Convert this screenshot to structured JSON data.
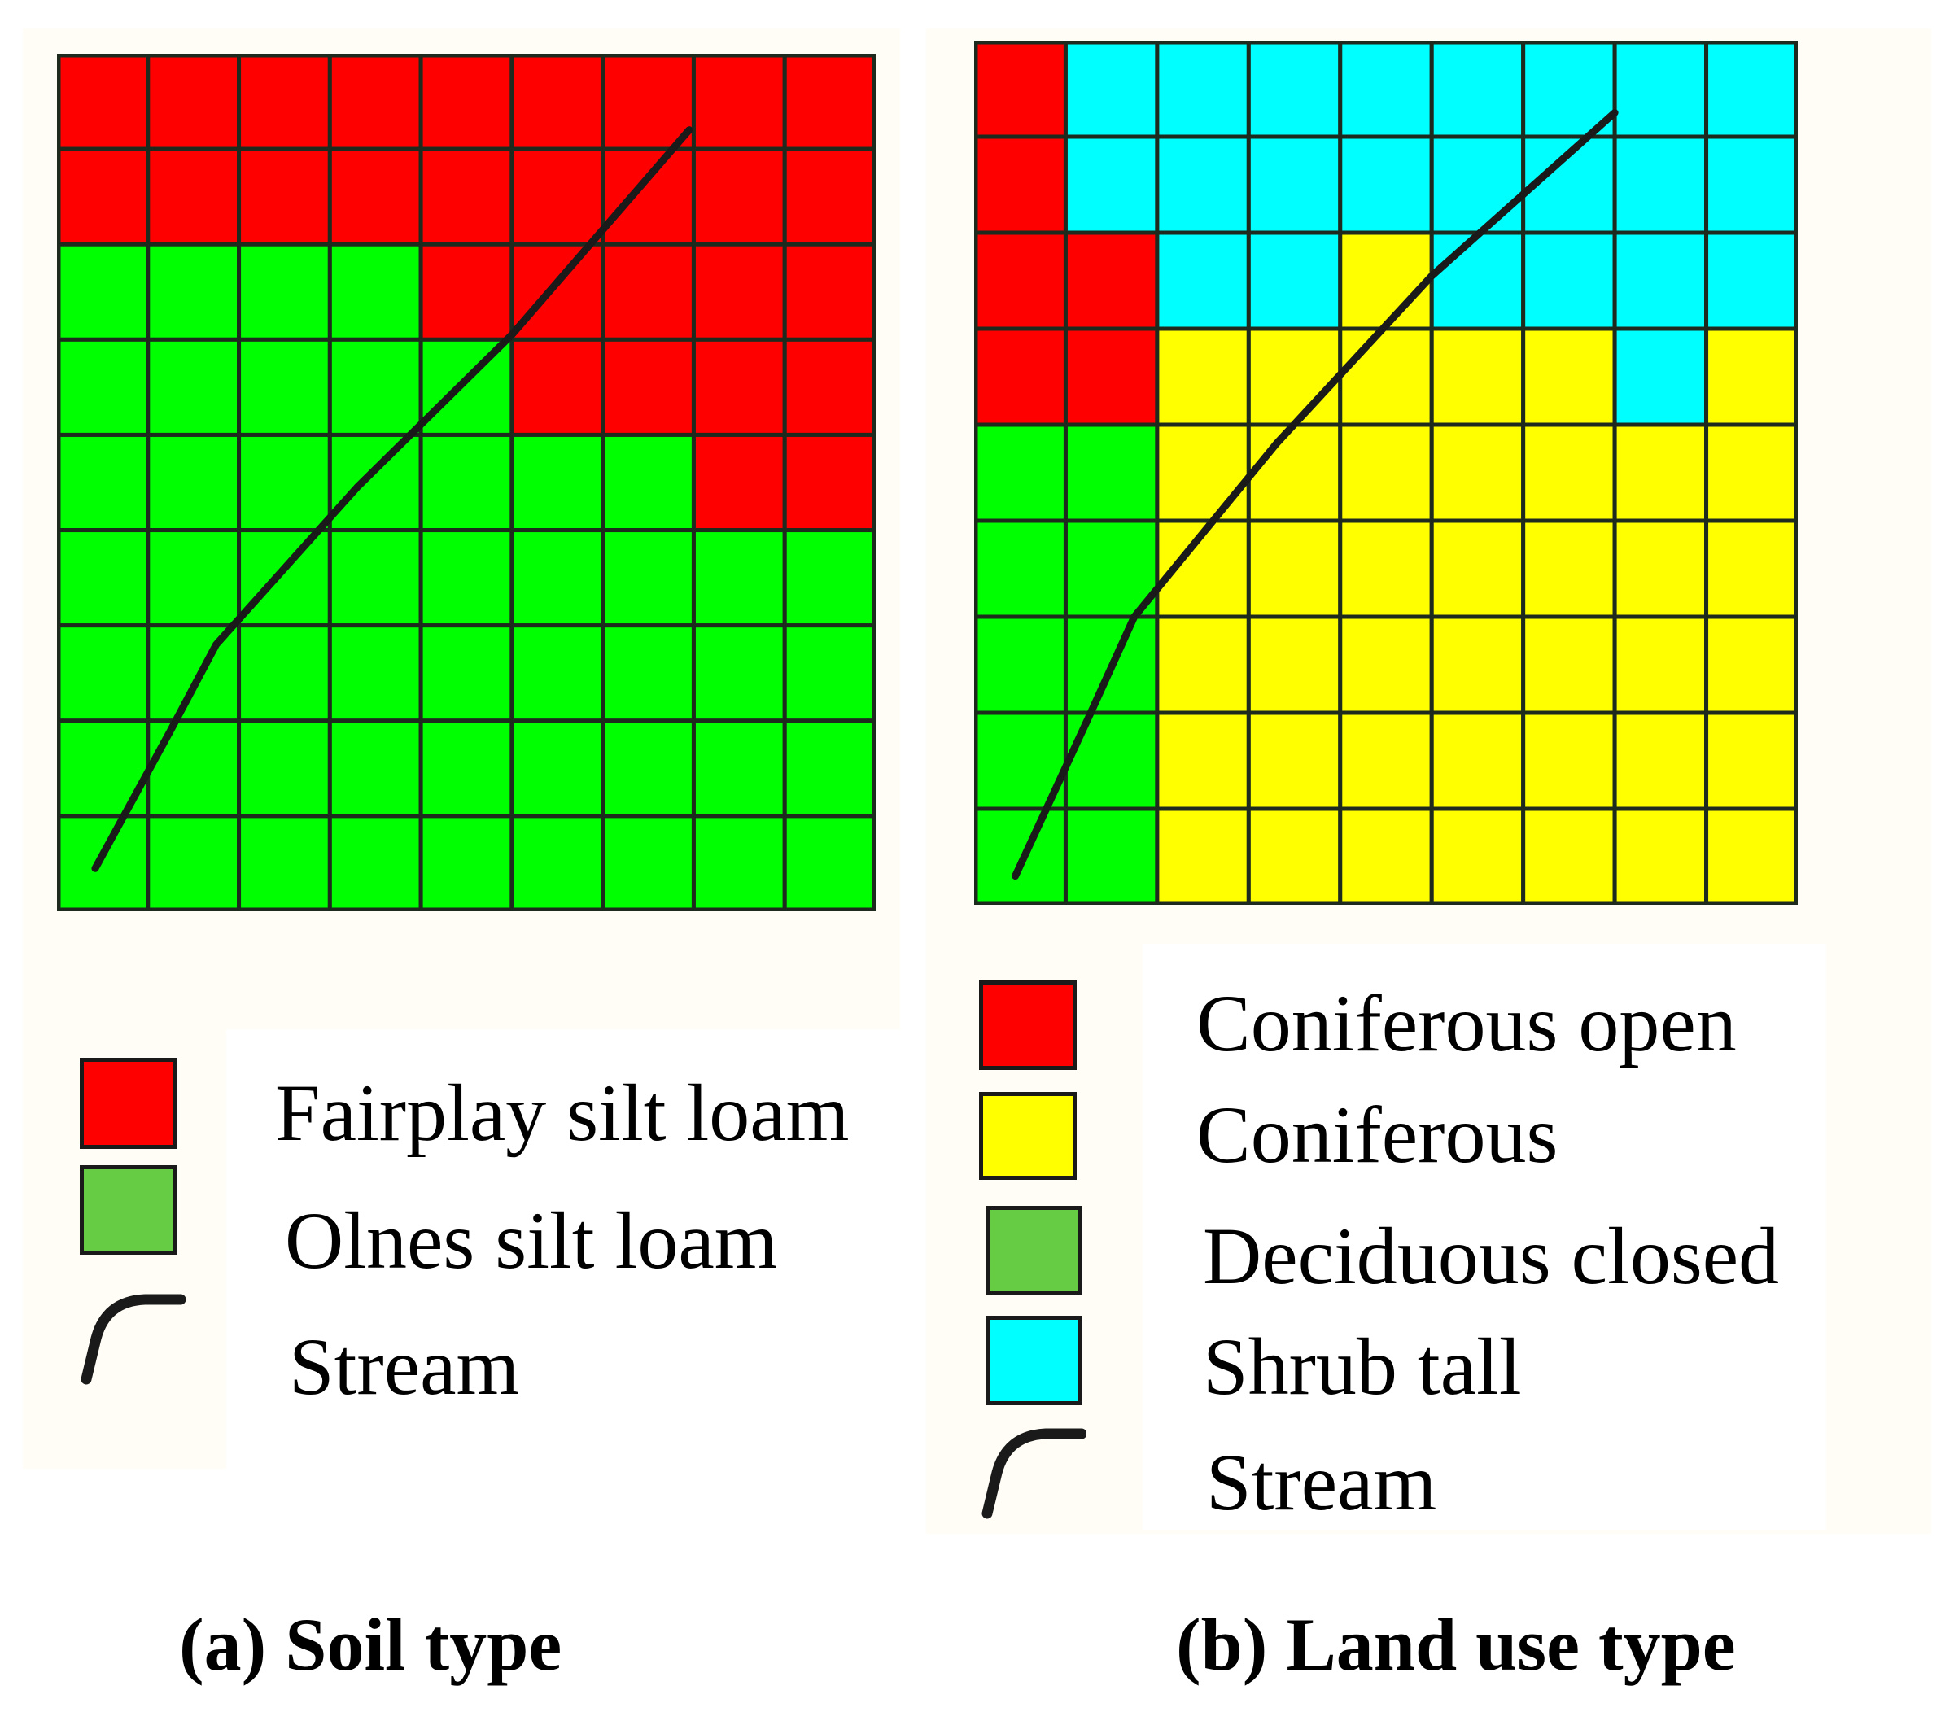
{
  "colors": {
    "red": "#ff0000",
    "green": "#00ff00",
    "yellow": "#ffff00",
    "cyan": "#00ffff",
    "legend_green": "#66cc44",
    "grid_line": "#1e2a1e",
    "stream": "#1a1a1a"
  },
  "panel_a": {
    "caption": "(a) Soil type",
    "grid": [
      "RRRRRRRRR",
      "RRRRRRRRR",
      "GGGGRRRRR",
      "GGGGGRRRR",
      "GGGGGGGRR",
      "GGGGGGGGG",
      "GGGGGGGGG",
      "GGGGGGGGG",
      "GGGGGGGGG"
    ],
    "legend": [
      {
        "label": "Fairplay silt loam",
        "color": "red",
        "icon": "swatch"
      },
      {
        "label": "Olnes silt loam",
        "color": "legend_green",
        "icon": "swatch"
      },
      {
        "label": "Stream",
        "color": "stream",
        "icon": "stream-line-icon"
      }
    ]
  },
  "panel_b": {
    "caption": "(b) Land use type",
    "grid": [
      "RCCCCCCCC",
      "RCCCCCCCC",
      "RRCCYCCCC",
      "RRYYYYYCY",
      "GGYYYYYYY",
      "GGYYYYYYY",
      "GGYYYYYYY",
      "GGYYYYYYY",
      "GGYYYYYYY"
    ],
    "legend": [
      {
        "label": "Coniferous open",
        "color": "red",
        "icon": "swatch"
      },
      {
        "label": "Coniferous",
        "color": "yellow",
        "icon": "swatch"
      },
      {
        "label": "Deciduous closed",
        "color": "legend_green",
        "icon": "swatch"
      },
      {
        "label": "Shrub tall",
        "color": "cyan",
        "icon": "swatch"
      },
      {
        "label": "Stream",
        "color": "stream",
        "icon": "stream-line-icon"
      }
    ]
  }
}
